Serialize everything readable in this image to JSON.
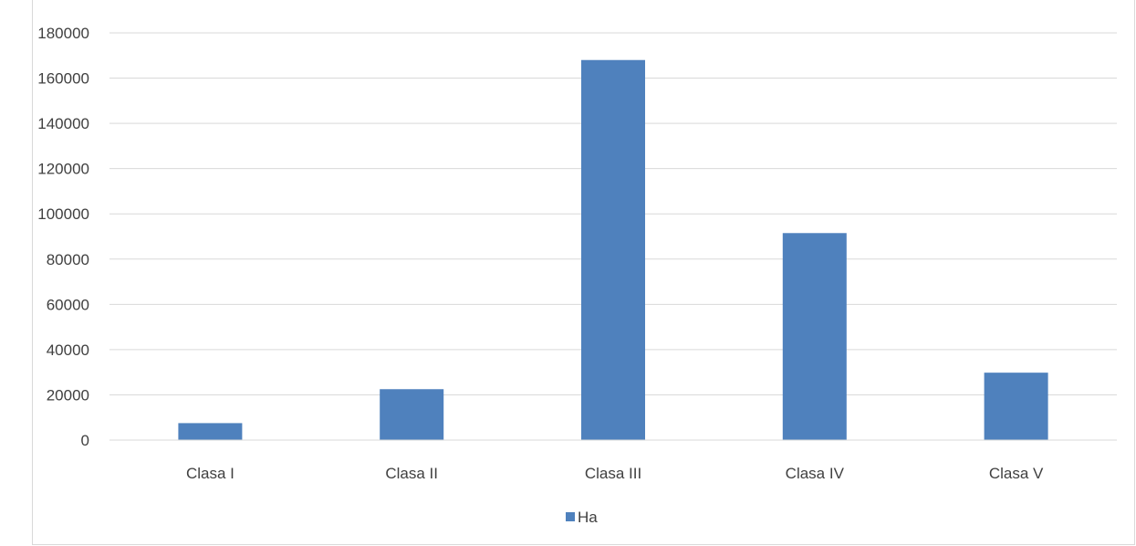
{
  "chart_data": {
    "type": "bar",
    "categories": [
      "Clasa I",
      "Clasa II",
      "Clasa III",
      "Clasa IV",
      "Clasa V"
    ],
    "series": [
      {
        "name": "Ha",
        "values": [
          7500,
          22500,
          168000,
          91500,
          29800
        ]
      }
    ],
    "ylim": [
      0,
      180000
    ],
    "yticks": [
      0,
      20000,
      40000,
      60000,
      80000,
      100000,
      120000,
      140000,
      160000,
      180000
    ],
    "grid": true,
    "legend": "bottom",
    "colors": {
      "bar": "#4f81bd",
      "grid": "#d9d9d9",
      "text": "#404040"
    }
  }
}
